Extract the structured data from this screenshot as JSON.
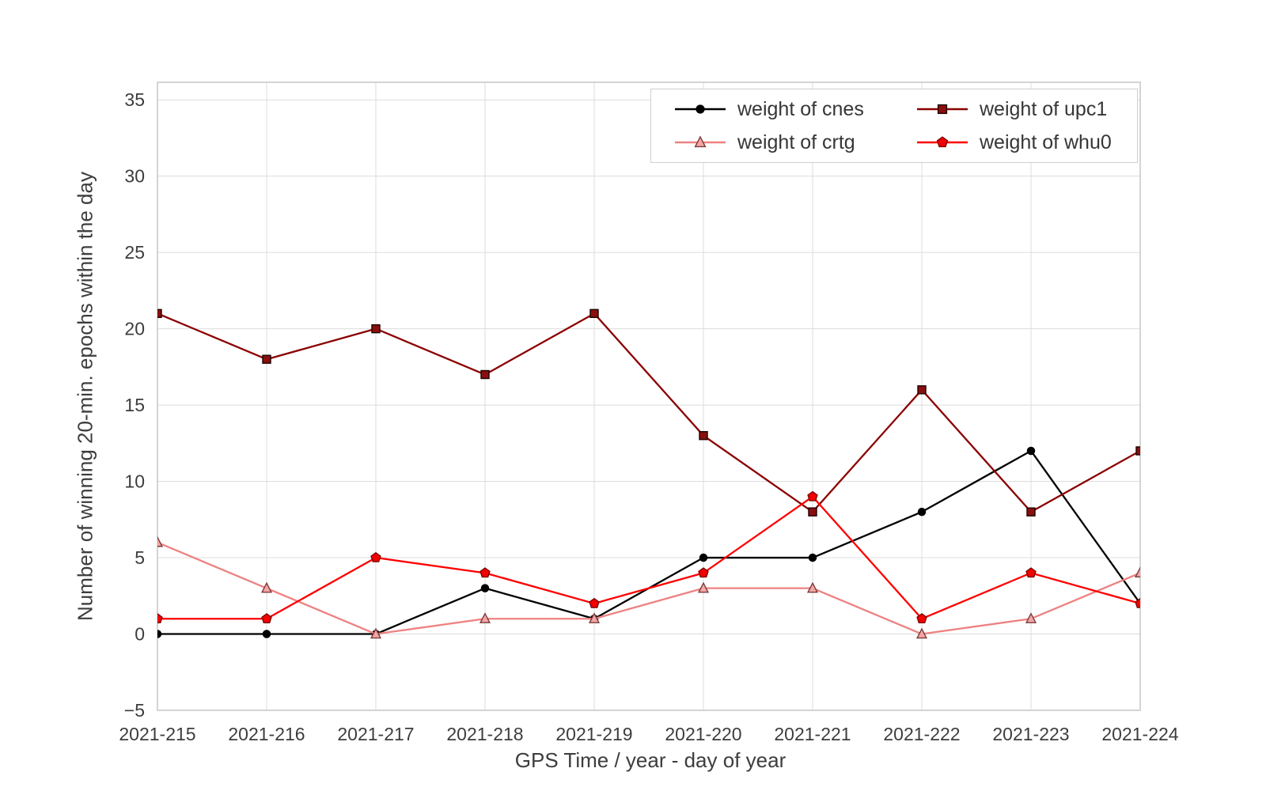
{
  "chart_data": {
    "type": "line",
    "title": "",
    "xlabel": "GPS Time / year - day of year",
    "ylabel": "Number of winning 20-min. epochs within the day",
    "categories": [
      "2021-215",
      "2021-216",
      "2021-217",
      "2021-218",
      "2021-219",
      "2021-220",
      "2021-221",
      "2021-222",
      "2021-223",
      "2021-224"
    ],
    "yticks": [
      -5,
      0,
      5,
      10,
      15,
      20,
      25,
      30,
      35
    ],
    "ylim": [
      -5,
      36.15
    ],
    "grid": true,
    "legend_position": "upper right, 2 columns",
    "colors": {
      "grid": "#dcdcdc",
      "spine": "#c6c6c6",
      "text": "#3d3d3d",
      "background": "#ffffff"
    },
    "series": [
      {
        "name": "weight of cnes",
        "color": "#000000",
        "marker": "circle",
        "marker_fill": "#000000",
        "marker_edge": "#000000",
        "values": [
          0,
          0,
          0,
          3,
          1,
          5,
          5,
          8,
          12,
          2
        ]
      },
      {
        "name": "weight of crtg",
        "color": "#ee8181",
        "marker": "triangle",
        "marker_fill": "#f2a6a6",
        "marker_edge": "#7c3a3a",
        "values": [
          6,
          3,
          0,
          1,
          1,
          3,
          3,
          0,
          1,
          4
        ]
      },
      {
        "name": "weight of upc1",
        "color": "#8b0000",
        "marker": "square",
        "marker_fill": "#8b0e0e",
        "marker_edge": "#1c0303",
        "values": [
          21,
          18,
          20,
          17,
          21,
          13,
          8,
          16,
          8,
          12
        ]
      },
      {
        "name": "weight of whu0",
        "color": "#fe0000",
        "marker": "pentagon",
        "marker_fill": "#f40000",
        "marker_edge": "#7e0000",
        "values": [
          1,
          1,
          5,
          4,
          2,
          4,
          9,
          1,
          4,
          2
        ]
      }
    ]
  }
}
